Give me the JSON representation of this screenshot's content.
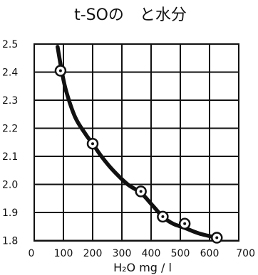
{
  "chart_data": {
    "type": "line",
    "title": "t-SOの　と水分",
    "xlabel": "H₂O mg / l",
    "ylabel": "",
    "xlim": [
      0,
      700
    ],
    "ylim": [
      1.775,
      2.5
    ],
    "grid": true,
    "x_ticks": [
      0,
      100,
      200,
      300,
      400,
      500,
      600,
      700
    ],
    "x_tick_labels": [
      "0",
      "100",
      "200",
      "300",
      "400",
      "500",
      "600",
      "700"
    ],
    "y_ticks": [
      2.5,
      2.4,
      2.3,
      2.2,
      2.1,
      2.0,
      1.9,
      1.8
    ],
    "y_tick_labels": [
      "2.5",
      "2.4",
      "2.3",
      "2.2",
      "2.1",
      "2.0",
      "1.9",
      "1.8"
    ],
    "series": [
      {
        "style": "curve",
        "x": [
          80,
          95,
          110,
          140,
          175,
          200,
          230,
          270,
          320,
          365,
          405,
          440,
          475,
          515,
          565,
          625
        ],
        "y": [
          2.49,
          2.4,
          2.33,
          2.24,
          2.18,
          2.145,
          2.1,
          2.05,
          2.0,
          1.97,
          1.925,
          1.885,
          1.86,
          1.845,
          1.825,
          1.81
        ]
      },
      {
        "style": "markers",
        "x": [
          90,
          200,
          365,
          440,
          515,
          625
        ],
        "y": [
          2.405,
          2.145,
          1.975,
          1.885,
          1.86,
          1.81
        ]
      }
    ]
  }
}
